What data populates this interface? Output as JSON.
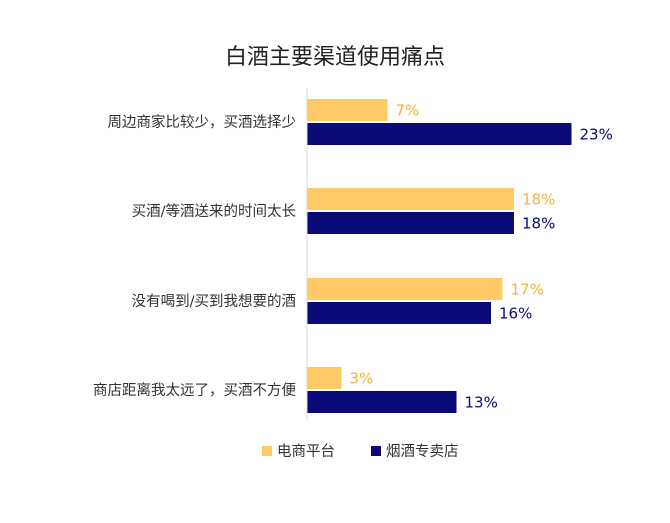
{
  "chart_data": {
    "type": "bar",
    "orientation": "horizontal",
    "title": "白酒主要渠道使用痛点",
    "categories": [
      "周边商家比较少，买酒选择少",
      "买酒/等酒送来的时间太长",
      "没有喝到/买到我想要的酒",
      "商店距离我太远了，买酒不方便"
    ],
    "series": [
      {
        "name": "电商平台",
        "values": [
          7,
          18,
          17,
          3
        ],
        "labels": [
          "7%",
          "18%",
          "17%",
          "3%"
        ],
        "color": "#FFC966"
      },
      {
        "name": "烟酒专卖店",
        "values": [
          23,
          18,
          16,
          13
        ],
        "labels": [
          "23%",
          "18%",
          "16%",
          "13%"
        ],
        "color": "#0A0A78"
      }
    ],
    "unit": "%",
    "grid": false,
    "legend_position": "bottom"
  }
}
